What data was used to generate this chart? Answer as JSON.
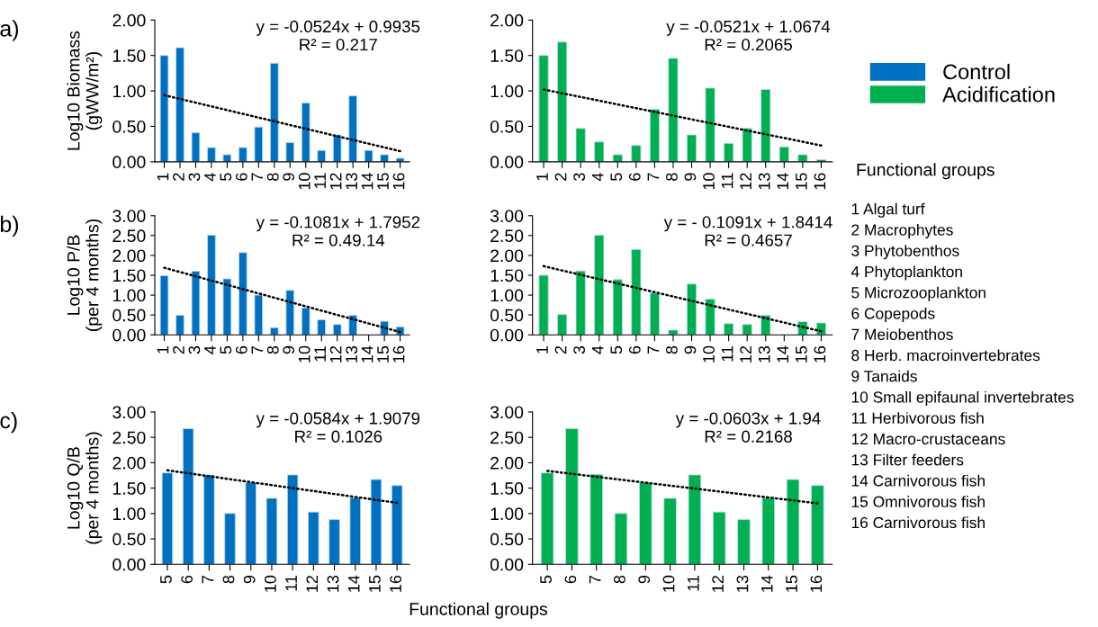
{
  "chart_data": [
    {
      "type": "bar",
      "ylabel": "Log10 Biomass\n(gWW/m²)",
      "categories": [
        "1",
        "2",
        "3",
        "4",
        "5",
        "6",
        "7",
        "8",
        "9",
        "10",
        "11",
        "12",
        "13",
        "14",
        "15",
        "16"
      ],
      "ylim": [
        0,
        2
      ],
      "yticks": [
        {
          "value": 0,
          "label": "0.00"
        },
        {
          "value": 0.5,
          "label": "0.50"
        },
        {
          "value": 1,
          "label": "1.00"
        },
        {
          "value": 1.5,
          "label": "1.50"
        },
        {
          "value": 2,
          "label": "2.00"
        }
      ],
      "legend": "right",
      "annotations": [
        "a)",
        "y = -0.0524x + 0.9935\nR² = 0.217"
      ],
      "series": [
        {
          "name": "Control",
          "color": "#0070c0",
          "values": [
            1.5,
            1.61,
            0.41,
            0.2,
            0.1,
            0.2,
            0.49,
            1.39,
            0.27,
            0.83,
            0.16,
            0.38,
            0.93,
            0.16,
            0.1,
            0.05
          ]
        },
        {
          "type": "line",
          "x": [
            "1",
            "16"
          ],
          "values": [
            0.94,
            0.15
          ],
          "color": "#000000",
          "line_style": "dotted",
          "marker": "none"
        }
      ]
    },
    {
      "type": "bar",
      "categories": [
        "1",
        "2",
        "3",
        "4",
        "5",
        "6",
        "7",
        "8",
        "9",
        "10",
        "11",
        "12",
        "13",
        "14",
        "15",
        "16"
      ],
      "ylim": [
        0,
        2
      ],
      "yticks": [
        {
          "value": 0,
          "label": "0.00"
        },
        {
          "value": 0.5,
          "label": "0.50"
        },
        {
          "value": 1,
          "label": "1.00"
        },
        {
          "value": 1.5,
          "label": "1.50"
        },
        {
          "value": 2,
          "label": "2.00"
        }
      ],
      "legend": "right",
      "annotations": [
        "y = -0.0521x + 1.0674\nR² = 0.2065"
      ],
      "series": [
        {
          "name": "Acidification",
          "color": "#00b050",
          "values": [
            1.5,
            1.69,
            0.47,
            0.28,
            0.1,
            0.23,
            0.74,
            1.46,
            0.38,
            1.04,
            0.26,
            0.47,
            1.02,
            0.21,
            0.1,
            0.03
          ]
        },
        {
          "type": "line",
          "x": [
            "1",
            "16"
          ],
          "values": [
            1.02,
            0.23
          ],
          "color": "#000000",
          "line_style": "dotted",
          "marker": "none"
        }
      ]
    },
    {
      "type": "bar",
      "ylabel": "Log10 P/B\n(per 4 months)",
      "categories": [
        "1",
        "2",
        "3",
        "4",
        "5",
        "6",
        "7",
        "8",
        "9",
        "10",
        "11",
        "12",
        "13",
        "14",
        "15",
        "16"
      ],
      "ylim": [
        0,
        3
      ],
      "yticks": [
        {
          "value": 0,
          "label": "0.00"
        },
        {
          "value": 0.5,
          "label": "0.50"
        },
        {
          "value": 1,
          "label": "1.00"
        },
        {
          "value": 1.5,
          "label": "1.50"
        },
        {
          "value": 2,
          "label": "2.00"
        },
        {
          "value": 2.5,
          "label": "2.50"
        },
        {
          "value": 3,
          "label": "3.00"
        }
      ],
      "annotations": [
        "b)",
        "y = -0.1081x + 1.7952\nR² = 0.49.14"
      ],
      "series": [
        {
          "color": "#0070c0",
          "values": [
            1.49,
            0.49,
            1.6,
            2.51,
            1.41,
            2.07,
            1.0,
            0.18,
            1.12,
            0.68,
            0.38,
            0.26,
            0.49,
            null,
            0.34,
            0.2
          ]
        },
        {
          "type": "line",
          "x": [
            "1",
            "16"
          ],
          "values": [
            1.69,
            0.07
          ],
          "color": "#000000",
          "line_style": "dotted",
          "marker": "none"
        }
      ]
    },
    {
      "type": "bar",
      "categories": [
        "1",
        "2",
        "3",
        "4",
        "5",
        "6",
        "7",
        "8",
        "9",
        "10",
        "11",
        "12",
        "13",
        "14",
        "15",
        "16"
      ],
      "ylim": [
        0,
        3
      ],
      "yticks": [
        {
          "value": 0,
          "label": "0.00"
        },
        {
          "value": 0.5,
          "label": "0.50"
        },
        {
          "value": 1,
          "label": "1.00"
        },
        {
          "value": 1.5,
          "label": "1.50"
        },
        {
          "value": 2,
          "label": "2.00"
        },
        {
          "value": 2.5,
          "label": "2.50"
        },
        {
          "value": 3,
          "label": "3.00"
        }
      ],
      "annotations": [
        "y = - 0.1091x + 1.8414\nR² = 0.4657"
      ],
      "series": [
        {
          "color": "#00b050",
          "values": [
            1.5,
            0.51,
            1.61,
            2.51,
            1.39,
            2.15,
            1.05,
            0.12,
            1.28,
            0.9,
            0.28,
            0.26,
            0.49,
            null,
            0.33,
            0.3
          ]
        },
        {
          "type": "line",
          "x": [
            "1",
            "16"
          ],
          "values": [
            1.73,
            0.09
          ],
          "color": "#000000",
          "line_style": "dotted",
          "marker": "none"
        }
      ]
    },
    {
      "type": "bar",
      "ylabel": "Log10 Q/B\n(per 4 months)",
      "xlabel": "Functional groups",
      "categories": [
        "5",
        "6",
        "7",
        "8",
        "9",
        "10",
        "11",
        "12",
        "13",
        "14",
        "15",
        "16"
      ],
      "ylim": [
        0,
        3
      ],
      "yticks": [
        {
          "value": 0,
          "label": "0.00"
        },
        {
          "value": 0.5,
          "label": "0.50"
        },
        {
          "value": 1,
          "label": "1.00"
        },
        {
          "value": 1.5,
          "label": "1.50"
        },
        {
          "value": 2,
          "label": "2.00"
        },
        {
          "value": 2.5,
          "label": "2.50"
        },
        {
          "value": 3,
          "label": "3.00"
        }
      ],
      "annotations": [
        "c)",
        "y = -0.0584x + 1.9079\nR² = 0.1026"
      ],
      "series": [
        {
          "color": "#0070c0",
          "values": [
            1.8,
            2.67,
            1.76,
            1.0,
            1.61,
            1.3,
            1.76,
            1.03,
            0.88,
            1.31,
            1.67,
            1.55
          ]
        },
        {
          "type": "line",
          "x": [
            "5",
            "16"
          ],
          "values": [
            1.85,
            1.21
          ],
          "color": "#000000",
          "line_style": "dotted",
          "marker": "none"
        }
      ]
    },
    {
      "type": "bar",
      "categories": [
        "5",
        "6",
        "7",
        "8",
        "9",
        "10",
        "11",
        "12",
        "13",
        "14",
        "15",
        "16"
      ],
      "ylim": [
        0,
        3
      ],
      "yticks": [
        {
          "value": 0,
          "label": "0.00"
        },
        {
          "value": 0.5,
          "label": "0.50"
        },
        {
          "value": 1,
          "label": "1.00"
        },
        {
          "value": 1.5,
          "label": "1.50"
        },
        {
          "value": 2,
          "label": "2.00"
        },
        {
          "value": 2.5,
          "label": "2.50"
        },
        {
          "value": 3,
          "label": "3.00"
        }
      ],
      "annotations": [
        "y = -0.0603x + 1.94\nR² = 0.2168"
      ],
      "series": [
        {
          "color": "#00b050",
          "values": [
            1.8,
            2.67,
            1.77,
            1.0,
            1.61,
            1.3,
            1.76,
            1.03,
            0.88,
            1.31,
            1.67,
            1.55
          ]
        },
        {
          "type": "line",
          "x": [
            "5",
            "16"
          ],
          "values": [
            1.84,
            1.2
          ],
          "color": "#000000",
          "line_style": "dotted",
          "marker": "none"
        }
      ]
    },
    {
      "type": "other",
      "title": "Functional groups",
      "annotations": [
        "1 Algal turf",
        "2 Macrophytes",
        "3 Phytobenthos",
        "4 Phytoplankton",
        "5 Microzooplankton",
        "6 Copepods",
        "7 Meiobenthos",
        "8 Herb. macroinvertebrates",
        "9 Tanaids",
        "10 Small epifaunal invertebrates",
        "11 Herbivorous fish",
        "12 Macro-crustaceans",
        "13 Filter feeders",
        "14 Carnivorous fish",
        "15 Omnivorous fish",
        "16 Carnivorous fish"
      ]
    }
  ]
}
